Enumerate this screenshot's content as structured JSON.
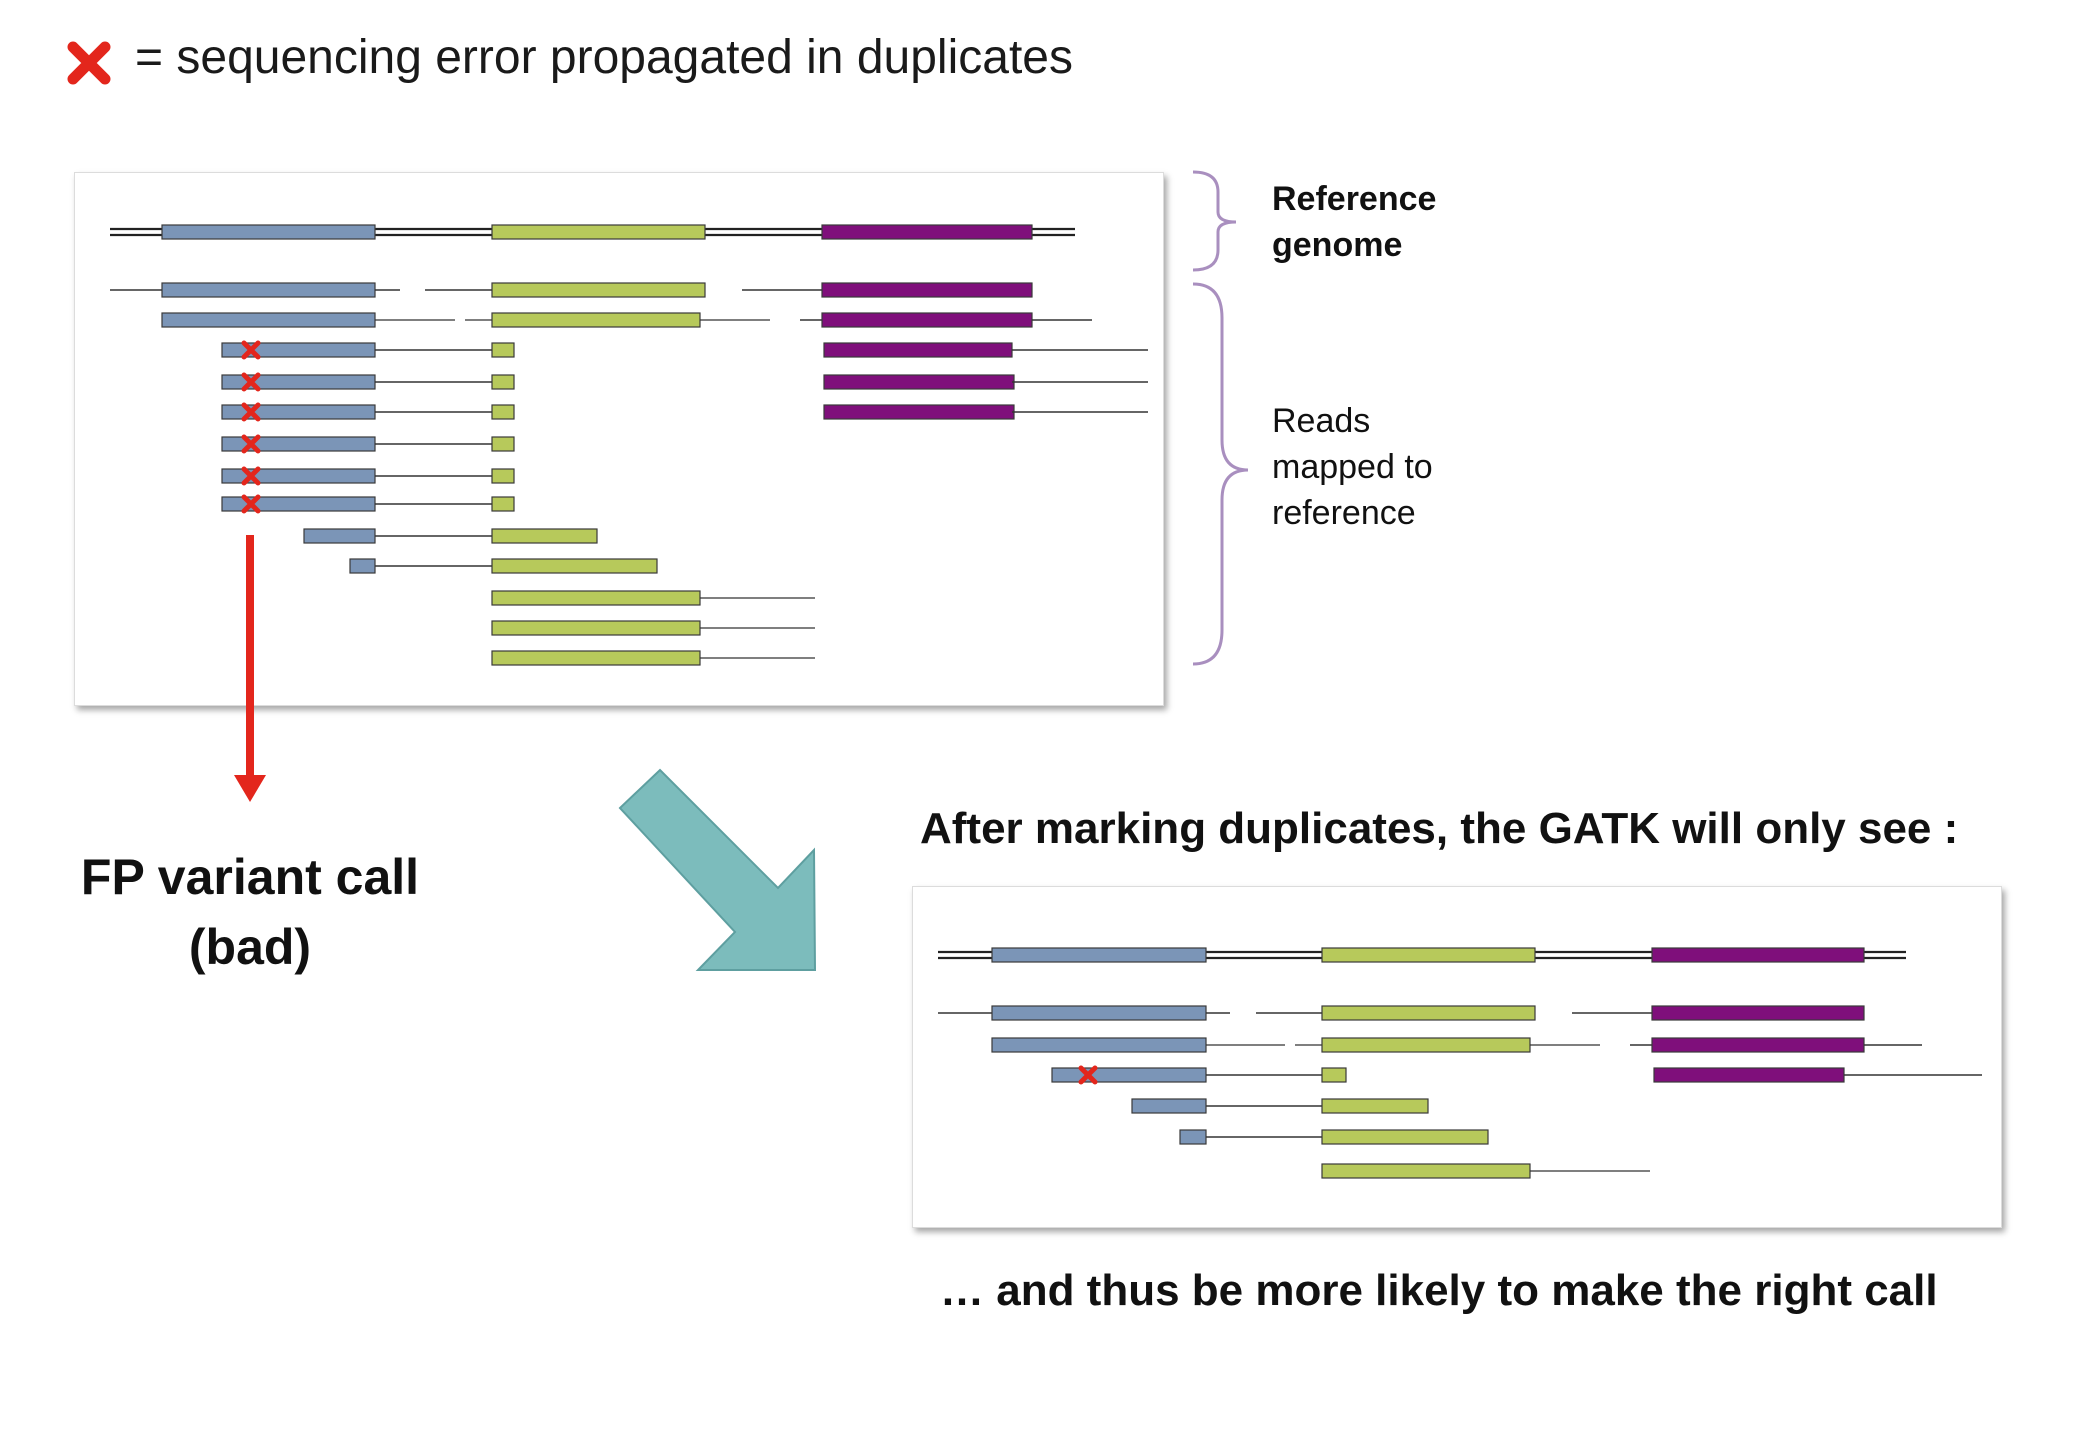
{
  "legend": {
    "marker_icon": "red-x-icon",
    "text": "= sequencing error propagated in duplicates"
  },
  "labels": {
    "reference_genome": [
      "Reference",
      "genome"
    ],
    "reads_mapped": [
      "Reads",
      "mapped to",
      "reference"
    ],
    "fp_variant_call": [
      "FP variant call",
      "(bad)"
    ],
    "after_marking": "After marking duplicates, the GATK will only see :",
    "thus_more_likely": "… and thus be more likely to make the right call"
  },
  "colors": {
    "blue_segment": "#7b95b7",
    "green_segment": "#b7c95b",
    "purple_segment": "#7f0f7b",
    "error_marker": "#e3261c",
    "big_arrow": "#7cbcbc",
    "bracket": "#a98fbf"
  }
}
